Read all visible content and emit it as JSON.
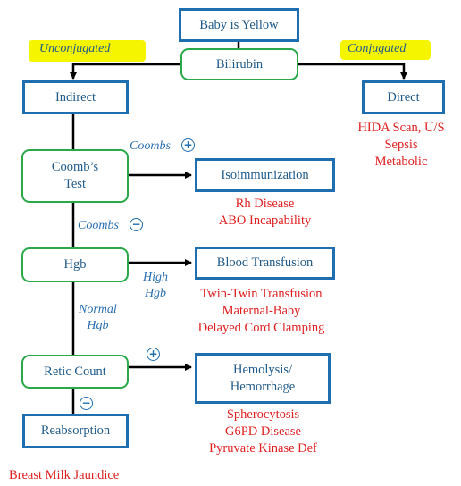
{
  "nodes": {
    "top": "Baby is Yellow",
    "bilirubin": "Bilirubin",
    "indirect": "Indirect",
    "direct": "Direct",
    "coombs_test": "Coomb’s\nTest",
    "isoimmunization": "Isoimmunization",
    "hgb": "Hgb",
    "blood_transfusion": "Blood Transfusion",
    "retic": "Retic Count",
    "hemolysis": "Hemolysis/\nHemorrhage",
    "reabsorption": "Reabsorption"
  },
  "labels": {
    "unconjugated": "Unconjugated",
    "conjugated": "Conjugated",
    "coombs_pos": "Coombs",
    "coombs_neg": "Coombs",
    "high_hgb": "High\nHgb",
    "normal_hgb": "Normal\nHgb",
    "plus": "+",
    "minus": "−"
  },
  "causes": {
    "direct": "HIDA Scan, U/S\nSepsis\nMetabolic",
    "isoimmunization": "Rh Disease\nABO Incapability",
    "transfusion": "Twin-Twin Transfusion\nMaternal-Baby\nDelayed Cord Clamping",
    "hemolysis": "Spherocytosis\nG6PD Disease\nPyruvate Kinase Def",
    "reabsorption": "Breast Milk Jaundice"
  },
  "colors": {
    "blue_border": "#1f6fb0",
    "green_border": "#2aa84a",
    "cause_text": "#e02020",
    "highlight": "#f5f500"
  }
}
